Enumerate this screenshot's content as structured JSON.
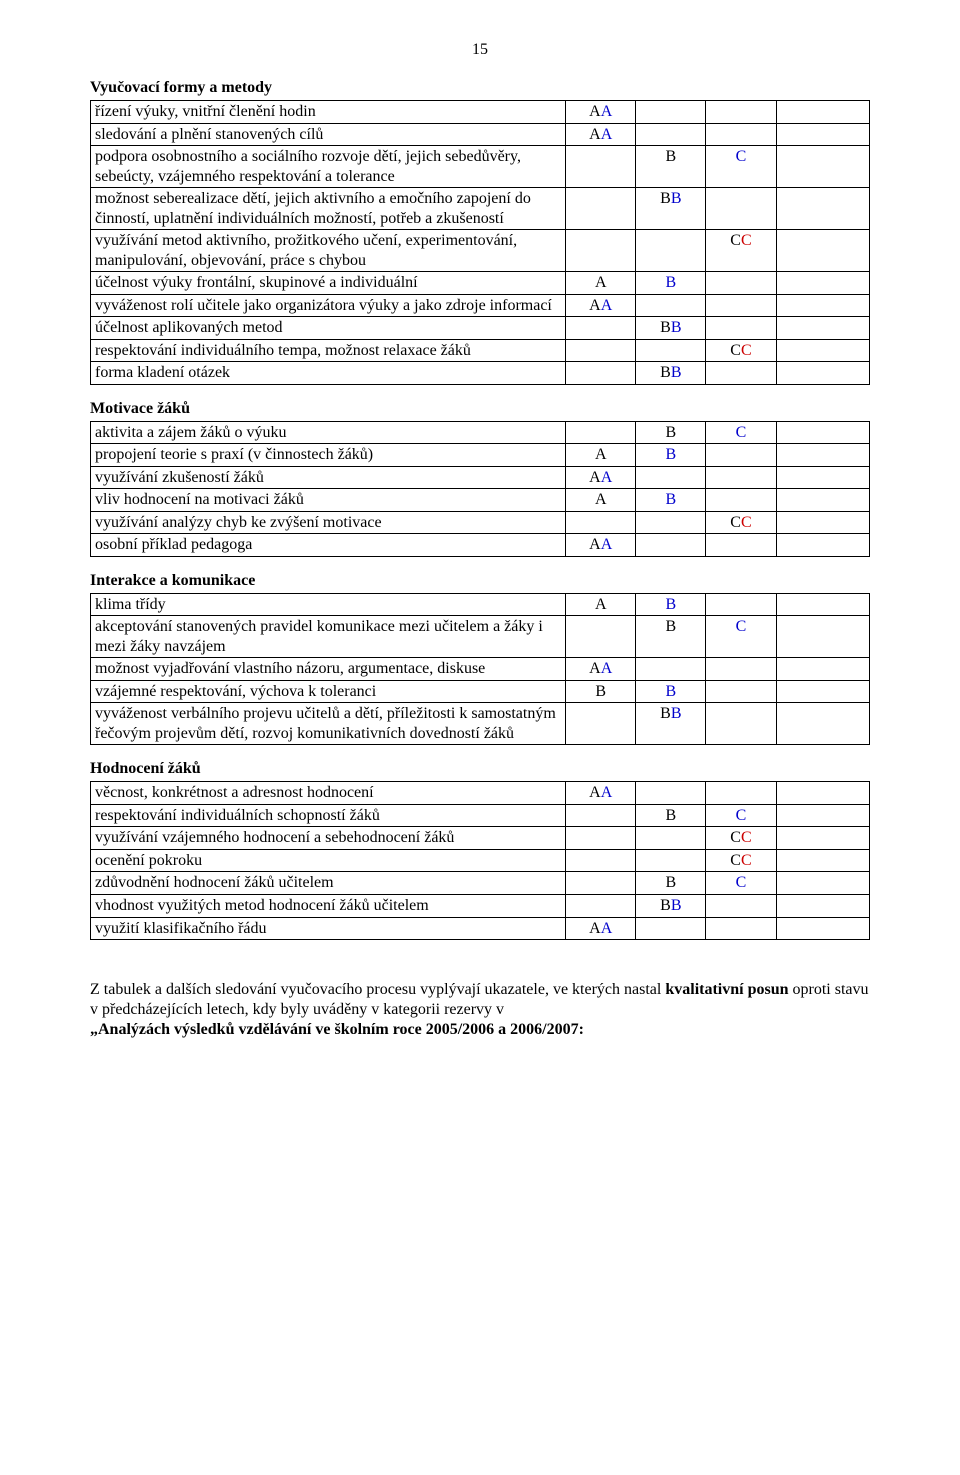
{
  "pageNumber": "15",
  "sections": [
    {
      "title": "Vyučovací formy a metody",
      "rows": [
        {
          "text": "řízení výuky, vnitřní členění hodin",
          "a": [
            {
              "t": "A",
              "c": "black"
            },
            {
              "t": "A",
              "c": "blue"
            }
          ],
          "b": [],
          "c": [],
          "d": []
        },
        {
          "text": "sledování a plnění stanovených cílů",
          "a": [
            {
              "t": "A",
              "c": "black"
            },
            {
              "t": "A",
              "c": "blue"
            }
          ],
          "b": [],
          "c": [],
          "d": []
        },
        {
          "text": "podpora osobnostního a sociálního rozvoje dětí, jejich sebedůvěry, sebeúcty, vzájemného respektování a tolerance",
          "a": [],
          "b": [
            {
              "t": "B",
              "c": "black"
            }
          ],
          "c": [
            {
              "t": "C",
              "c": "blue"
            }
          ],
          "d": []
        },
        {
          "text": "možnost seberealizace dětí, jejich aktivního a emočního zapojení do činností, uplatnění individuálních možností, potřeb a zkušeností",
          "a": [],
          "b": [
            {
              "t": "B",
              "c": "black"
            },
            {
              "t": "B",
              "c": "blue"
            }
          ],
          "c": [],
          "d": []
        },
        {
          "text": "využívání metod aktivního, prožitkového učení, experimentování, manipulování, objevování, práce s chybou",
          "a": [],
          "b": [],
          "c": [
            {
              "t": "C",
              "c": "black"
            },
            {
              "t": "C",
              "c": "red"
            }
          ],
          "d": []
        },
        {
          "text": "účelnost výuky frontální, skupinové a individuální",
          "a": [
            {
              "t": "A",
              "c": "black"
            }
          ],
          "b": [
            {
              "t": "B",
              "c": "blue"
            }
          ],
          "c": [],
          "d": []
        },
        {
          "text": "vyváženost rolí učitele jako organizátora výuky a jako zdroje informací",
          "a": [
            {
              "t": "A",
              "c": "black"
            },
            {
              "t": "A",
              "c": "blue"
            }
          ],
          "b": [],
          "c": [],
          "d": []
        },
        {
          "text": "účelnost aplikovaných metod",
          "a": [],
          "b": [
            {
              "t": "B",
              "c": "black"
            },
            {
              "t": "B",
              "c": "blue"
            }
          ],
          "c": [],
          "d": []
        },
        {
          "text": "respektování individuálního tempa, možnost relaxace žáků",
          "a": [],
          "b": [],
          "c": [
            {
              "t": "C",
              "c": "black"
            },
            {
              "t": "C",
              "c": "red"
            }
          ],
          "d": []
        },
        {
          "text": "forma kladení otázek",
          "a": [],
          "b": [
            {
              "t": "B",
              "c": "black"
            },
            {
              "t": "B",
              "c": "blue"
            }
          ],
          "c": [],
          "d": []
        }
      ]
    },
    {
      "title": "Motivace žáků",
      "rows": [
        {
          "text": "aktivita a zájem žáků o výuku",
          "a": [],
          "b": [
            {
              "t": "B",
              "c": "black"
            }
          ],
          "c": [
            {
              "t": "C",
              "c": "blue"
            }
          ],
          "d": []
        },
        {
          "text": "propojení teorie s praxí (v činnostech žáků)",
          "a": [
            {
              "t": "A",
              "c": "black"
            }
          ],
          "b": [
            {
              "t": "B",
              "c": "blue"
            }
          ],
          "c": [],
          "d": []
        },
        {
          "text": "využívání zkušeností žáků",
          "a": [
            {
              "t": "A",
              "c": "black"
            },
            {
              "t": "A",
              "c": "blue"
            }
          ],
          "b": [],
          "c": [],
          "d": []
        },
        {
          "text": "vliv hodnocení na motivaci žáků",
          "a": [
            {
              "t": "A",
              "c": "black"
            }
          ],
          "b": [
            {
              "t": "B",
              "c": "blue"
            }
          ],
          "c": [],
          "d": []
        },
        {
          "text": "využívání analýzy chyb ke zvýšení motivace",
          "a": [],
          "b": [],
          "c": [
            {
              "t": "C",
              "c": "black"
            },
            {
              "t": "C",
              "c": "red"
            }
          ],
          "d": []
        },
        {
          "text": "osobní příklad pedagoga",
          "a": [
            {
              "t": "A",
              "c": "black"
            },
            {
              "t": "A",
              "c": "blue"
            }
          ],
          "b": [],
          "c": [],
          "d": []
        }
      ]
    },
    {
      "title": "Interakce a komunikace",
      "rows": [
        {
          "text": "klima třídy",
          "a": [
            {
              "t": "A",
              "c": "black"
            }
          ],
          "b": [
            {
              "t": "B",
              "c": "blue"
            }
          ],
          "c": [],
          "d": []
        },
        {
          "text": "akceptování stanovených pravidel komunikace mezi učitelem a žáky i mezi žáky navzájem",
          "a": [],
          "b": [
            {
              "t": "B",
              "c": "black"
            }
          ],
          "c": [
            {
              "t": "C",
              "c": "blue"
            }
          ],
          "d": []
        },
        {
          "text": "možnost vyjadřování vlastního názoru, argumentace, diskuse",
          "a": [
            {
              "t": "A",
              "c": "black"
            },
            {
              "t": "A",
              "c": "blue"
            }
          ],
          "b": [],
          "c": [],
          "d": []
        },
        {
          "text": "vzájemné respektování, výchova k toleranci",
          "a": [
            {
              "t": "B",
              "c": "black"
            }
          ],
          "b": [
            {
              "t": "B",
              "c": "blue"
            }
          ],
          "c": [],
          "d": []
        },
        {
          "text": "vyváženost verbálního projevu učitelů a dětí, příležitosti k samostatným řečovým projevům dětí, rozvoj komunikativních dovedností žáků",
          "a": [],
          "b": [
            {
              "t": "B",
              "c": "black"
            },
            {
              "t": "B",
              "c": "blue"
            }
          ],
          "c": [],
          "d": []
        }
      ]
    },
    {
      "title": "Hodnocení žáků",
      "rows": [
        {
          "text": "věcnost, konkrétnost a adresnost hodnocení",
          "a": [
            {
              "t": "A",
              "c": "black"
            },
            {
              "t": "A",
              "c": "blue"
            }
          ],
          "b": [],
          "c": [],
          "d": []
        },
        {
          "text": "respektování individuálních schopností žáků",
          "a": [],
          "b": [
            {
              "t": "B",
              "c": "black"
            }
          ],
          "c": [
            {
              "t": "C",
              "c": "blue"
            }
          ],
          "d": []
        },
        {
          "text": "využívání vzájemného hodnocení a sebehodnocení žáků",
          "a": [],
          "b": [],
          "c": [
            {
              "t": "C",
              "c": "black"
            },
            {
              "t": "C",
              "c": "red"
            }
          ],
          "d": []
        },
        {
          "text": "ocenění pokroku",
          "a": [],
          "b": [],
          "c": [
            {
              "t": "C",
              "c": "black"
            },
            {
              "t": "C",
              "c": "red"
            }
          ],
          "d": []
        },
        {
          "text": "zdůvodnění hodnocení žáků učitelem",
          "a": [],
          "b": [
            {
              "t": "B",
              "c": "black"
            }
          ],
          "c": [
            {
              "t": "C",
              "c": "blue"
            }
          ],
          "d": []
        },
        {
          "text": "vhodnost využitých metod hodnocení žáků učitelem",
          "a": [],
          "b": [
            {
              "t": "B",
              "c": "black"
            },
            {
              "t": "B",
              "c": "blue"
            }
          ],
          "c": [],
          "d": []
        },
        {
          "text": "využití klasifikačního řádu",
          "a": [
            {
              "t": "A",
              "c": "black"
            },
            {
              "t": "A",
              "c": "blue"
            }
          ],
          "b": [],
          "c": [],
          "d": []
        }
      ]
    }
  ],
  "footer": {
    "pre": "Z tabulek a dalších sledování vyučovacího procesu vyplývají ukazatele, ve kterých nastal ",
    "bold": "kvalitativní posun",
    "post1": " oproti stavu v předcházejících letech, kdy byly uváděny v kategorii rezervy v ",
    "bold2": "„Analýzách  výsledků vzdělávání ve školním roce 2005/2006 a 2006/2007:",
    "post2": ""
  }
}
